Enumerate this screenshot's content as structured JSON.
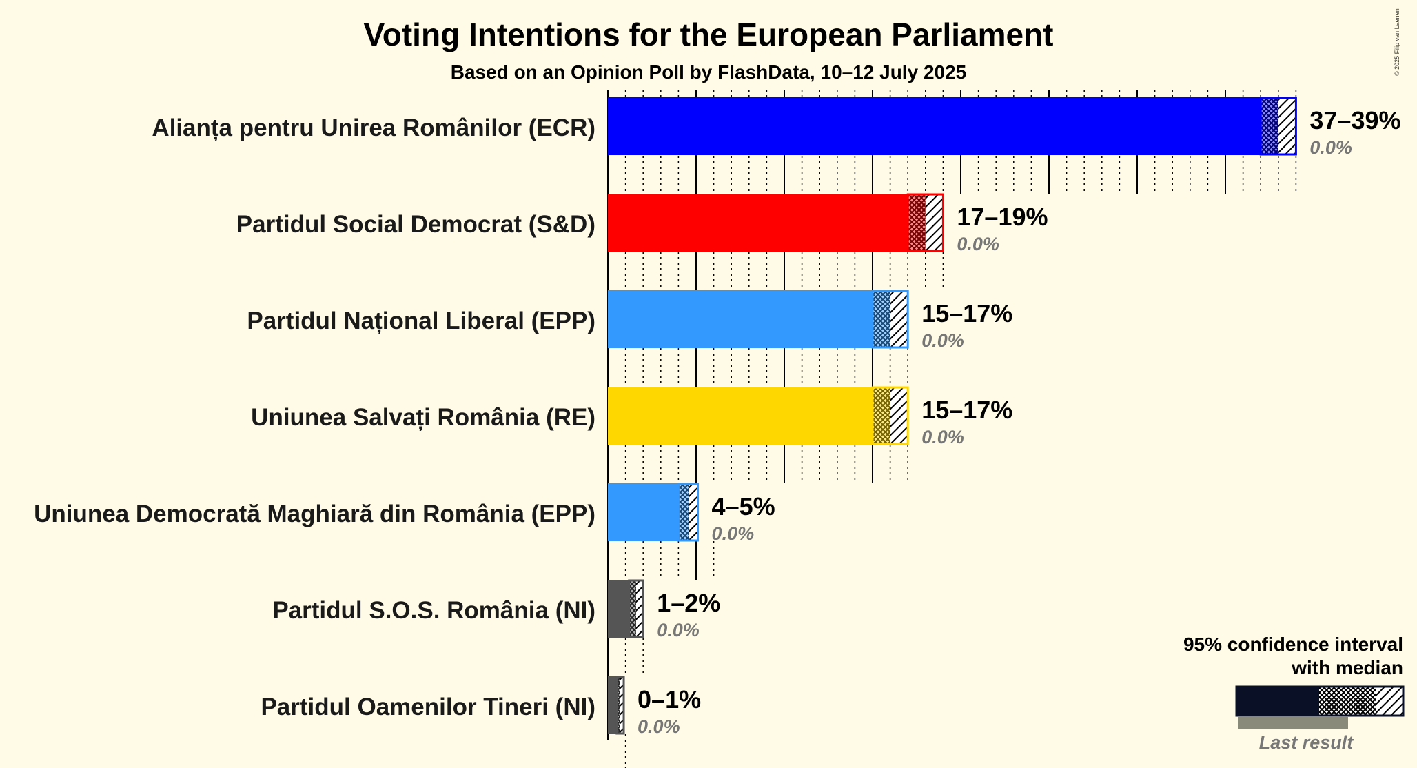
{
  "title": "Voting Intentions for the European Parliament",
  "subtitle": "Based on an Opinion Poll by FlashData, 10–12 July 2025",
  "copyright": "© 2025 Filip van Laenen",
  "legend": {
    "ci_label_line1": "95% confidence interval",
    "ci_label_line2": "with median",
    "last_result_label": "Last result"
  },
  "chart_data": {
    "type": "bar",
    "orientation": "horizontal",
    "x_unit": "percent",
    "xlim": [
      0,
      40
    ],
    "major_grid_step": 5,
    "minor_grid_step": 1,
    "series": [
      {
        "party": "Alianța pentru Unirea Românilor (ECR)",
        "low": 37,
        "median": 38,
        "high": 39,
        "range_label": "37–39%",
        "last_result_label": "0.0%",
        "last_result": 0.0,
        "color": "#0000ff"
      },
      {
        "party": "Partidul Social Democrat (S&D)",
        "low": 17,
        "median": 18,
        "high": 19,
        "range_label": "17–19%",
        "last_result_label": "0.0%",
        "last_result": 0.0,
        "color": "#ff0000"
      },
      {
        "party": "Partidul Național Liberal (EPP)",
        "low": 15,
        "median": 16,
        "high": 17,
        "range_label": "15–17%",
        "last_result_label": "0.0%",
        "last_result": 0.0,
        "color": "#3399ff"
      },
      {
        "party": "Uniunea Salvați România (RE)",
        "low": 15,
        "median": 16,
        "high": 17,
        "range_label": "15–17%",
        "last_result_label": "0.0%",
        "last_result": 0.0,
        "color": "#ffd700"
      },
      {
        "party": "Uniunea Democrată Maghiară din România (EPP)",
        "low": 4,
        "median": 4.6,
        "high": 5.1,
        "range_label": "4–5%",
        "last_result_label": "0.0%",
        "last_result": 0.0,
        "color": "#3399ff"
      },
      {
        "party": "Partidul S.O.S. România (NI)",
        "low": 1.2,
        "median": 1.6,
        "high": 2.0,
        "range_label": "1–2%",
        "last_result_label": "0.0%",
        "last_result": 0.0,
        "color": "#555555"
      },
      {
        "party": "Partidul Oamenilor Tineri (NI)",
        "low": 0.5,
        "median": 0.7,
        "high": 0.9,
        "range_label": "0–1%",
        "last_result_label": "0.0%",
        "last_result": 0.0,
        "color": "#555555"
      }
    ]
  }
}
